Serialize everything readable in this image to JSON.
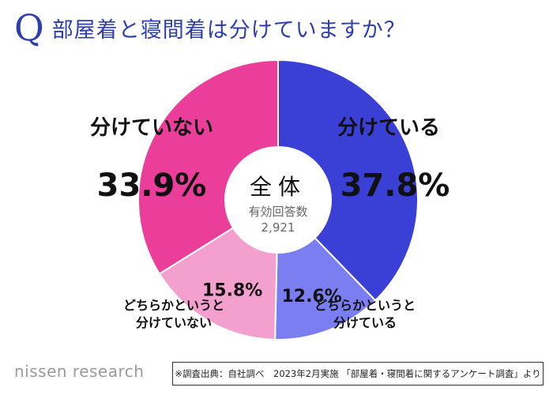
{
  "header": {
    "q_mark": "Q",
    "question": "部屋着と寝間着は分けていますか？"
  },
  "chart_data": {
    "type": "pie",
    "style": "donut",
    "center": {
      "title": "全体",
      "subtitle": "有効回答数",
      "count": "2,921"
    },
    "slices": [
      {
        "key": "separate",
        "label": "分けている",
        "label_lines": [
          "分けている"
        ],
        "percent": 37.8,
        "percent_label": "37.8%",
        "color": "#3a40d6"
      },
      {
        "key": "somewhat_separate",
        "label": "どちらかというと分けている",
        "label_lines": [
          "どちらかというと",
          "分けている"
        ],
        "percent": 12.6,
        "percent_label": "12.6%",
        "color": "#7b7ef0"
      },
      {
        "key": "somewhat_not",
        "label": "どちらかというと分けていない",
        "label_lines": [
          "どちらかというと",
          "分けていない"
        ],
        "percent": 15.8,
        "percent_label": "15.8%",
        "color": "#f4a0cf"
      },
      {
        "key": "not_separate",
        "label": "分けていない",
        "label_lines": [
          "分けていない"
        ],
        "percent": 33.9,
        "percent_label": "33.9%",
        "color": "#ea3e9a"
      }
    ]
  },
  "footer": {
    "brand": "nissen research",
    "source": "※調査出典：自社調べ　2023年2月実施 「部屋着・寝間着に関するアンケート調査」より"
  }
}
